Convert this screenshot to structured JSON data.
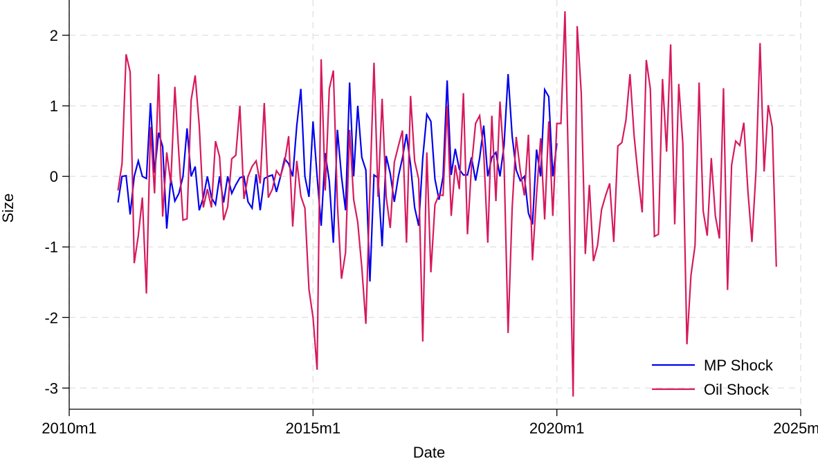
{
  "chart_data": {
    "type": "line",
    "title": "",
    "xlabel": "Date",
    "ylabel": "Size",
    "x_ticks": [
      {
        "label": "2010m1",
        "value": 2010.0
      },
      {
        "label": "2015m1",
        "value": 2015.0
      },
      {
        "label": "2020m1",
        "value": 2020.0
      },
      {
        "label": "2025m1",
        "value": 2025.0
      }
    ],
    "y_ticks": [
      {
        "label": "2",
        "value": 2
      },
      {
        "label": "1",
        "value": 1
      },
      {
        "label": "0",
        "value": 0
      },
      {
        "label": "-1",
        "value": -1
      },
      {
        "label": "-2",
        "value": -2
      },
      {
        "label": "-3",
        "value": -3
      }
    ],
    "xlim": [
      2010.0,
      2025.0
    ],
    "ylim": [
      -3.3,
      2.5
    ],
    "grid": true,
    "legend_position": "bottom-right",
    "series": [
      {
        "name": "MP Shock",
        "color": "#0000ee",
        "start": "2011m1",
        "values": [
          -0.37,
          0.0,
          0.01,
          -0.54,
          0.0,
          0.22,
          0.0,
          -0.03,
          1.04,
          0.05,
          0.62,
          0.42,
          -0.74,
          -0.03,
          -0.35,
          -0.24,
          0.0,
          0.68,
          0.0,
          0.14,
          -0.48,
          -0.3,
          0.0,
          -0.3,
          -0.4,
          0.0,
          -0.37,
          0.0,
          -0.24,
          -0.12,
          -0.02,
          0.0,
          -0.36,
          -0.45,
          0.03,
          -0.48,
          -0.03,
          0.0,
          0.02,
          -0.22,
          0.0,
          0.25,
          0.18,
          0.0,
          0.72,
          1.24,
          0.0,
          -0.29,
          0.78,
          0.0,
          -0.7,
          0.33,
          -0.07,
          -0.94,
          0.66,
          0.0,
          -0.48,
          1.33,
          0.0,
          1.0,
          0.27,
          0.09,
          -1.49,
          0.02,
          -0.02,
          -0.99,
          0.29,
          0.04,
          -0.36,
          0.0,
          0.26,
          0.6,
          0.16,
          -0.44,
          -0.7,
          0.26,
          0.88,
          0.78,
          -0.04,
          -0.33,
          0.0,
          1.36,
          0.02,
          0.39,
          0.1,
          0.02,
          0.02,
          0.27,
          -0.06,
          0.26,
          0.72,
          0.0,
          0.27,
          0.34,
          0.0,
          0.44,
          1.45,
          0.57,
          0.09,
          -0.06,
          0.0,
          -0.52,
          -0.68,
          0.38,
          0.0,
          1.23,
          1.13,
          0.0,
          0.47
        ]
      },
      {
        "name": "Oil Shock",
        "color": "#d6195d",
        "start": "2011m1",
        "values": [
          -0.2,
          0.18,
          1.73,
          1.48,
          -1.23,
          -0.84,
          -0.3,
          -1.66,
          0.7,
          -0.24,
          1.45,
          -0.57,
          0.34,
          -0.1,
          1.27,
          0.3,
          -0.62,
          -0.6,
          1.08,
          1.43,
          0.72,
          -0.44,
          -0.18,
          -0.44,
          0.5,
          0.28,
          -0.62,
          -0.43,
          0.25,
          0.3,
          1.0,
          -0.32,
          0.0,
          0.14,
          0.22,
          -0.1,
          1.04,
          -0.3,
          -0.18,
          0.08,
          0.0,
          0.2,
          0.57,
          -0.71,
          0.22,
          -0.28,
          -0.45,
          -1.6,
          -2.0,
          -2.74,
          1.66,
          -0.2,
          1.24,
          1.5,
          -0.4,
          -1.45,
          -1.08,
          0.66,
          -0.33,
          -0.65,
          -1.29,
          -2.09,
          -0.17,
          1.61,
          -0.29,
          1.1,
          -0.29,
          -0.73,
          0.2,
          0.43,
          0.65,
          -0.94,
          1.14,
          0.22,
          -0.04,
          -2.34,
          0.34,
          -1.36,
          -0.4,
          -0.26,
          -0.27,
          1.0,
          -0.56,
          0.16,
          -0.18,
          1.18,
          -0.82,
          0.15,
          0.75,
          0.86,
          0.34,
          -0.94,
          0.86,
          -0.35,
          1.06,
          0.2,
          -2.22,
          -0.45,
          0.56,
          0.08,
          -0.27,
          0.59,
          -1.19,
          -0.26,
          0.54,
          -0.61,
          0.78,
          -0.56,
          0.75,
          0.75,
          2.34,
          -0.28,
          -3.12,
          2.13,
          1.18,
          -1.1,
          -0.12,
          -1.2,
          -0.98,
          -0.47,
          -0.27,
          -0.1,
          -0.93,
          0.43,
          0.48,
          0.8,
          1.45,
          0.58,
          0.0,
          -0.51,
          1.65,
          1.24,
          -0.85,
          -0.82,
          1.38,
          0.35,
          1.87,
          -0.68,
          1.31,
          0.46,
          -2.38,
          -1.4,
          -0.98,
          1.33,
          -0.49,
          -0.84,
          0.26,
          -0.56,
          -0.88,
          1.25,
          -1.61,
          0.16,
          0.5,
          0.44,
          0.76,
          -0.2,
          -0.93,
          0.08,
          1.89,
          0.07,
          1.01,
          0.7,
          -1.28
        ]
      }
    ]
  }
}
